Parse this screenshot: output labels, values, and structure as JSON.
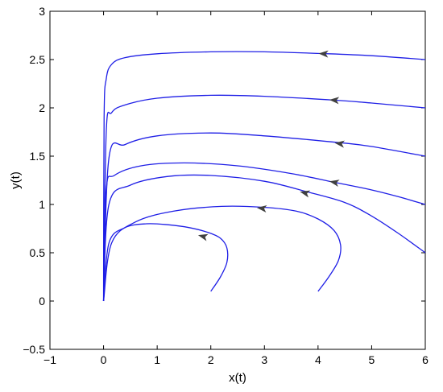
{
  "chart_data": {
    "type": "line",
    "xlabel": "x(t)",
    "ylabel": "y(t)",
    "xlim": [
      -1,
      6
    ],
    "ylim": [
      -0.5,
      3
    ],
    "xticks": [
      "−1",
      "0",
      "1",
      "2",
      "3",
      "4",
      "5",
      "6"
    ],
    "xtick_values": [
      -1,
      0,
      1,
      2,
      3,
      4,
      5,
      6
    ],
    "yticks": [
      "−0.5",
      "0",
      "0.5",
      "1",
      "1.5",
      "2",
      "2.5",
      "3"
    ],
    "ytick_values": [
      -0.5,
      0,
      0.5,
      1,
      1.5,
      2,
      2.5,
      3
    ],
    "grid": false,
    "line_color": "#1f1fe6",
    "arrow_color": "#404040",
    "series": [
      {
        "x": [
          6.0,
          5.0,
          4.2,
          3.0,
          2.0,
          1.0,
          0.4,
          0.15,
          0.05,
          0.01,
          0.0
        ],
        "y": [
          2.5,
          2.54,
          2.56,
          2.58,
          2.58,
          2.56,
          2.52,
          2.45,
          2.3,
          1.9,
          0.0
        ],
        "arrow": [
          4.1,
          2.56
        ]
      },
      {
        "x": [
          6.0,
          5.0,
          4.3,
          3.0,
          2.0,
          1.0,
          0.4,
          0.15,
          0.05,
          0.0
        ],
        "y": [
          2.0,
          2.05,
          2.08,
          2.12,
          2.13,
          2.1,
          2.03,
          1.95,
          1.75,
          0.0
        ],
        "arrow": [
          4.3,
          2.08
        ]
      },
      {
        "x": [
          6.0,
          5.0,
          4.4,
          3.0,
          2.0,
          1.0,
          0.4,
          0.1,
          0.0
        ],
        "y": [
          1.5,
          1.6,
          1.64,
          1.71,
          1.74,
          1.71,
          1.62,
          1.48,
          0.0
        ],
        "arrow": [
          4.4,
          1.63
        ]
      },
      {
        "x": [
          6.0,
          5.5,
          5.0,
          4.3,
          3.5,
          2.5,
          1.5,
          0.7,
          0.2,
          0.05,
          0.0
        ],
        "y": [
          1.0,
          1.08,
          1.15,
          1.23,
          1.32,
          1.4,
          1.43,
          1.4,
          1.3,
          1.15,
          0.0
        ],
        "arrow": [
          4.3,
          1.23
        ]
      },
      {
        "x": [
          6.0,
          5.5,
          5.0,
          4.5,
          3.8,
          3.0,
          2.0,
          1.2,
          0.5,
          0.1,
          0.0
        ],
        "y": [
          0.5,
          0.7,
          0.88,
          1.02,
          1.13,
          1.24,
          1.3,
          1.29,
          1.2,
          1.0,
          0.0
        ],
        "arrow": [
          3.75,
          1.12
        ]
      },
      {
        "x": [
          4.0,
          4.2,
          4.38,
          4.42,
          4.3,
          4.0,
          3.6,
          3.0,
          2.2,
          1.3,
          0.6,
          0.15,
          0.0
        ],
        "y": [
          0.1,
          0.25,
          0.42,
          0.58,
          0.73,
          0.85,
          0.93,
          0.97,
          0.98,
          0.93,
          0.82,
          0.6,
          0.0
        ],
        "arrow": [
          2.95,
          0.96
        ]
      },
      {
        "x": [
          2.0,
          2.18,
          2.3,
          2.3,
          2.18,
          1.95,
          1.6,
          1.2,
          0.8,
          0.4,
          0.1,
          0.0
        ],
        "y": [
          0.1,
          0.25,
          0.4,
          0.55,
          0.65,
          0.71,
          0.76,
          0.79,
          0.8,
          0.76,
          0.6,
          0.0
        ],
        "arrow": [
          1.85,
          0.67
        ]
      }
    ]
  }
}
